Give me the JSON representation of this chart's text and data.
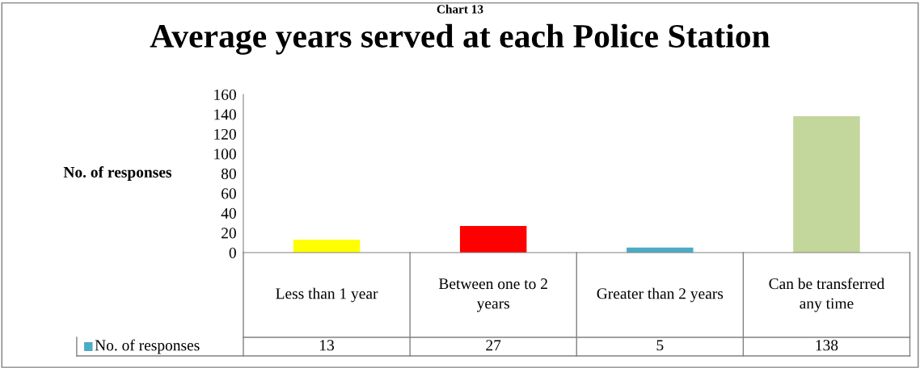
{
  "chart_data": {
    "type": "bar",
    "title": "Average years served at each Police Station",
    "ylabel": "No. of responses",
    "annotations": [
      "Chart 13"
    ],
    "categories": [
      "Less than 1 year",
      "Between one to 2 years",
      "Greater than 2 years",
      "Can be transferred any time"
    ],
    "series": [
      {
        "name": "No. of responses",
        "color": "#4bacc6",
        "colors": [
          "#ffff00",
          "#ff0000",
          "#4bacc6",
          "#c3d69b"
        ],
        "values": [
          13,
          27,
          5,
          138
        ]
      }
    ],
    "ylim": [
      0,
      160
    ],
    "yticks": [
      0,
      20,
      40,
      60,
      80,
      100,
      120,
      140,
      160
    ],
    "grid": false,
    "data_labels": true,
    "legend": "bottom"
  }
}
